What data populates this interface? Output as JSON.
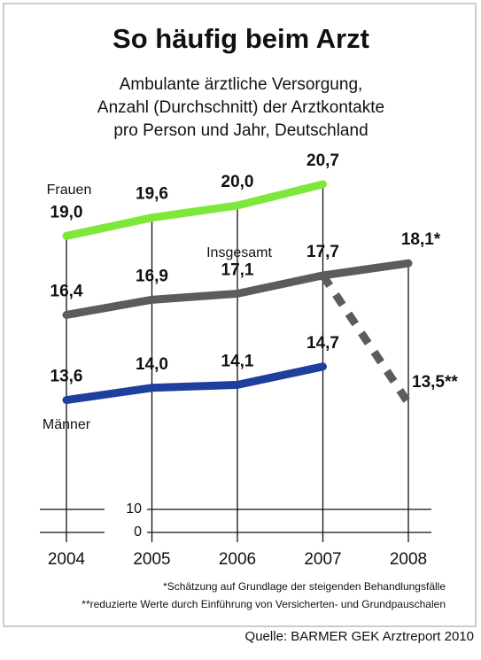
{
  "chart_data": {
    "type": "line",
    "title": "So häufig beim Arzt",
    "subtitle": [
      "Ambulante ärztliche Versorgung,",
      "Anzahl (Durchschnitt) der Arztkontakte",
      "pro Person und Jahr, Deutschland"
    ],
    "categories": [
      "2004",
      "2005",
      "2006",
      "2007",
      "2008"
    ],
    "series": [
      {
        "name": "Frauen",
        "color": "#7ee83a",
        "values": [
          19.0,
          19.6,
          20.0,
          20.7,
          null
        ],
        "value_labels": [
          "19,0",
          "19,6",
          "20,0",
          "20,7",
          null
        ]
      },
      {
        "name": "Insgesamt",
        "color": "#5b5d5c",
        "values": [
          16.4,
          16.9,
          17.1,
          17.7,
          18.1
        ],
        "value_labels": [
          "16,4",
          "16,9",
          "17,1",
          "17,7",
          "18,1*"
        ]
      },
      {
        "name": "Männer",
        "color": "#1f3f9f",
        "values": [
          13.6,
          14.0,
          14.1,
          14.7,
          null
        ],
        "value_labels": [
          "13,6",
          "14,0",
          "14,1",
          "14,7",
          null
        ]
      },
      {
        "color": "#5b5d5c",
        "dashed": true,
        "values": [
          null,
          null,
          null,
          17.7,
          13.5
        ],
        "value_labels": [
          null,
          null,
          null,
          null,
          "13,5**"
        ]
      }
    ],
    "ylim": [
      0,
      21
    ],
    "ybreak": [
      0,
      10
    ],
    "yticks": [
      0,
      10
    ],
    "footnotes": [
      "*Schätzung auf Grundlage der steigenden Behandlungsfälle",
      "**reduzierte Werte durch Einführung von Versicherten- und Grundpauschalen"
    ],
    "source": "Quelle: BARMER GEK Arztreport 2010"
  }
}
